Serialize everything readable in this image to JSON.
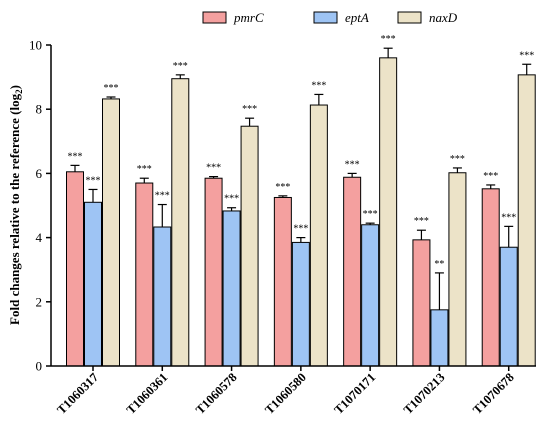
{
  "chart_data": {
    "type": "bar",
    "ylabel_main": "Fold changes relative to the reference (log",
    "ylabel_sub": "2",
    "ylabel_end": ")",
    "ylim": [
      0,
      10
    ],
    "yticks": [
      0,
      2,
      4,
      6,
      8,
      10
    ],
    "legend_position": "top",
    "categories": [
      "T1060317",
      "T1060361",
      "T1060578",
      "T1060580",
      "T1070171",
      "T1070213",
      "T1070678"
    ],
    "series": [
      {
        "name": "pmrC",
        "color": "#f4a09f",
        "values": [
          6.05,
          5.7,
          5.85,
          5.25,
          5.88,
          3.93,
          5.52
        ],
        "errors": [
          0.2,
          0.15,
          0.05,
          0.05,
          0.12,
          0.3,
          0.12
        ],
        "significance": [
          "***",
          "***",
          "***",
          "***",
          "***",
          "***",
          "***"
        ]
      },
      {
        "name": "eptA",
        "color": "#9ec4f4",
        "values": [
          5.1,
          4.33,
          4.83,
          3.85,
          4.4,
          1.75,
          3.7
        ],
        "errors": [
          0.4,
          0.7,
          0.1,
          0.15,
          0.05,
          1.15,
          0.65
        ],
        "significance": [
          "***",
          "***",
          "***",
          "***",
          "***",
          "**",
          "***"
        ]
      },
      {
        "name": "naxD",
        "color": "#ece3c8",
        "values": [
          8.32,
          8.95,
          7.47,
          8.13,
          9.6,
          6.02,
          9.07
        ],
        "errors": [
          0.06,
          0.12,
          0.25,
          0.33,
          0.3,
          0.15,
          0.33
        ],
        "significance": [
          "***",
          "***",
          "***",
          "***",
          "***",
          "***",
          "***"
        ]
      }
    ]
  }
}
